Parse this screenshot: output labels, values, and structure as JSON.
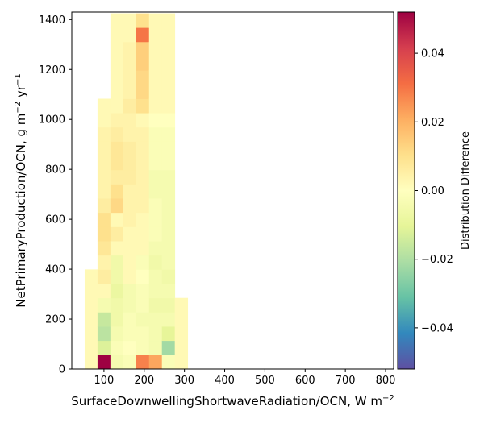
{
  "chart_data": {
    "type": "heatmap",
    "xlabel": "SurfaceDownwellingShortwaveRadiation/OCN,  W m$^{-2}$",
    "xlabel_text": "SurfaceDownwellingShortwaveRadiation/OCN,  W m",
    "xlabel_sup": "−2",
    "ylabel": "NetPrimaryProduction/OCN,  g m$^{-2}$ yr$^{-1}$",
    "ylabel_parts": [
      "NetPrimaryProduction/OCN,  g m",
      "−2",
      " yr",
      "−1"
    ],
    "xlim": [
      20,
      820
    ],
    "ylim": [
      0,
      1430
    ],
    "x_ticks": [
      100,
      200,
      300,
      400,
      500,
      600,
      700,
      800
    ],
    "y_ticks": [
      0,
      200,
      400,
      600,
      800,
      1000,
      1200,
      1400
    ],
    "colorbar": {
      "label": "Distribution Difference",
      "range": [
        -0.052,
        0.052
      ],
      "ticks": [
        -0.04,
        -0.02,
        0.0,
        0.02,
        0.04
      ],
      "tick_labels": [
        "−0.04",
        "−0.02",
        "0.00",
        "0.02",
        "0.04"
      ],
      "colormap": "Spectral_r"
    },
    "bin_width_x": 32,
    "bin_height_y": 57,
    "x_bin_starts": [
      52,
      84,
      116,
      148,
      180,
      212,
      244,
      276
    ],
    "cells": [
      [
        0,
        0,
        0.002
      ],
      [
        0,
        1,
        0.002
      ],
      [
        0,
        2,
        0.002
      ],
      [
        0,
        3,
        0.002
      ],
      [
        0,
        4,
        0.002
      ],
      [
        0,
        5,
        0.002
      ],
      [
        0,
        6,
        0.002
      ],
      [
        1,
        0,
        0.052
      ],
      [
        1,
        1,
        -0.012
      ],
      [
        1,
        2,
        -0.018
      ],
      [
        1,
        3,
        -0.016
      ],
      [
        1,
        4,
        -0.004
      ],
      [
        1,
        5,
        0.002
      ],
      [
        1,
        6,
        0.006
      ],
      [
        1,
        7,
        0.004
      ],
      [
        1,
        8,
        0.008
      ],
      [
        1,
        9,
        0.01
      ],
      [
        1,
        10,
        0.01
      ],
      [
        1,
        11,
        0.006
      ],
      [
        1,
        12,
        0.004
      ],
      [
        1,
        13,
        0.004
      ],
      [
        1,
        14,
        0.004
      ],
      [
        1,
        15,
        0.004
      ],
      [
        1,
        16,
        0.004
      ],
      [
        1,
        17,
        0.002
      ],
      [
        1,
        18,
        0.002
      ],
      [
        2,
        0,
        -0.004
      ],
      [
        2,
        1,
        -0.002
      ],
      [
        2,
        2,
        -0.004
      ],
      [
        2,
        3,
        -0.006
      ],
      [
        2,
        4,
        -0.006
      ],
      [
        2,
        5,
        -0.008
      ],
      [
        2,
        6,
        -0.006
      ],
      [
        2,
        7,
        -0.006
      ],
      [
        2,
        8,
        0.002
      ],
      [
        2,
        9,
        0.006
      ],
      [
        2,
        10,
        0.002
      ],
      [
        2,
        11,
        0.012
      ],
      [
        2,
        12,
        0.01
      ],
      [
        2,
        13,
        0.006
      ],
      [
        2,
        14,
        0.008
      ],
      [
        2,
        15,
        0.008
      ],
      [
        2,
        16,
        0.006
      ],
      [
        2,
        17,
        0.004
      ],
      [
        2,
        18,
        0.002
      ],
      [
        2,
        19,
        0.002
      ],
      [
        2,
        20,
        0.002
      ],
      [
        2,
        21,
        0.002
      ],
      [
        2,
        22,
        0.002
      ],
      [
        2,
        23,
        0.002
      ],
      [
        2,
        24,
        0.002
      ],
      [
        3,
        0,
        -0.002
      ],
      [
        3,
        1,
        0.0
      ],
      [
        3,
        2,
        -0.002
      ],
      [
        3,
        3,
        -0.002
      ],
      [
        3,
        4,
        -0.004
      ],
      [
        3,
        5,
        -0.004
      ],
      [
        3,
        6,
        0.002
      ],
      [
        3,
        7,
        0.002
      ],
      [
        3,
        8,
        0.002
      ],
      [
        3,
        9,
        0.002
      ],
      [
        3,
        10,
        0.004
      ],
      [
        3,
        11,
        0.004
      ],
      [
        3,
        12,
        0.004
      ],
      [
        3,
        13,
        0.006
      ],
      [
        3,
        14,
        0.006
      ],
      [
        3,
        15,
        0.006
      ],
      [
        3,
        16,
        0.004
      ],
      [
        3,
        17,
        0.004
      ],
      [
        3,
        18,
        0.006
      ],
      [
        3,
        19,
        0.004
      ],
      [
        3,
        20,
        0.004
      ],
      [
        3,
        21,
        0.004
      ],
      [
        3,
        22,
        0.004
      ],
      [
        3,
        23,
        0.002
      ],
      [
        3,
        24,
        0.002
      ],
      [
        4,
        0,
        0.028
      ],
      [
        4,
        1,
        -0.002
      ],
      [
        4,
        2,
        -0.002
      ],
      [
        4,
        3,
        -0.004
      ],
      [
        4,
        4,
        -0.002
      ],
      [
        4,
        5,
        -0.002
      ],
      [
        4,
        6,
        0.0
      ],
      [
        4,
        7,
        -0.002
      ],
      [
        4,
        8,
        0.002
      ],
      [
        4,
        9,
        0.002
      ],
      [
        4,
        10,
        0.002
      ],
      [
        4,
        11,
        0.004
      ],
      [
        4,
        12,
        0.004
      ],
      [
        4,
        13,
        0.004
      ],
      [
        4,
        14,
        0.004
      ],
      [
        4,
        15,
        0.004
      ],
      [
        4,
        16,
        0.004
      ],
      [
        4,
        17,
        0.002
      ],
      [
        4,
        18,
        0.01
      ],
      [
        4,
        19,
        0.012
      ],
      [
        4,
        20,
        0.012
      ],
      [
        4,
        21,
        0.014
      ],
      [
        4,
        22,
        0.014
      ],
      [
        4,
        23,
        0.03
      ],
      [
        4,
        24,
        0.01
      ],
      [
        5,
        0,
        0.022
      ],
      [
        5,
        1,
        -0.004
      ],
      [
        5,
        2,
        -0.004
      ],
      [
        5,
        3,
        -0.004
      ],
      [
        5,
        4,
        -0.006
      ],
      [
        5,
        5,
        -0.004
      ],
      [
        5,
        6,
        -0.004
      ],
      [
        5,
        7,
        -0.006
      ],
      [
        5,
        8,
        -0.004
      ],
      [
        5,
        9,
        -0.002
      ],
      [
        5,
        10,
        -0.002
      ],
      [
        5,
        11,
        -0.002
      ],
      [
        5,
        12,
        -0.004
      ],
      [
        5,
        13,
        -0.004
      ],
      [
        5,
        14,
        -0.002
      ],
      [
        5,
        15,
        -0.002
      ],
      [
        5,
        16,
        -0.002
      ],
      [
        5,
        17,
        0.0
      ],
      [
        5,
        18,
        0.002
      ],
      [
        5,
        19,
        0.002
      ],
      [
        5,
        20,
        0.002
      ],
      [
        5,
        21,
        0.002
      ],
      [
        5,
        22,
        0.002
      ],
      [
        5,
        23,
        0.002
      ],
      [
        5,
        24,
        0.002
      ],
      [
        6,
        0,
        -0.002
      ],
      [
        6,
        1,
        -0.022
      ],
      [
        6,
        2,
        -0.01
      ],
      [
        6,
        3,
        -0.004
      ],
      [
        6,
        4,
        -0.006
      ],
      [
        6,
        5,
        -0.004
      ],
      [
        6,
        6,
        -0.006
      ],
      [
        6,
        7,
        -0.004
      ],
      [
        6,
        8,
        -0.004
      ],
      [
        6,
        9,
        -0.004
      ],
      [
        6,
        10,
        -0.004
      ],
      [
        6,
        11,
        -0.004
      ],
      [
        6,
        12,
        -0.004
      ],
      [
        6,
        13,
        -0.004
      ],
      [
        6,
        14,
        -0.002
      ],
      [
        6,
        15,
        -0.002
      ],
      [
        6,
        16,
        -0.002
      ],
      [
        6,
        17,
        0.0
      ],
      [
        6,
        18,
        0.002
      ],
      [
        6,
        19,
        0.002
      ],
      [
        6,
        20,
        0.002
      ],
      [
        6,
        21,
        0.002
      ],
      [
        6,
        22,
        0.002
      ],
      [
        6,
        23,
        0.002
      ],
      [
        6,
        24,
        0.002
      ],
      [
        7,
        0,
        0.002
      ],
      [
        7,
        1,
        0.002
      ],
      [
        7,
        2,
        0.002
      ],
      [
        7,
        3,
        0.002
      ],
      [
        7,
        4,
        0.002
      ]
    ]
  }
}
